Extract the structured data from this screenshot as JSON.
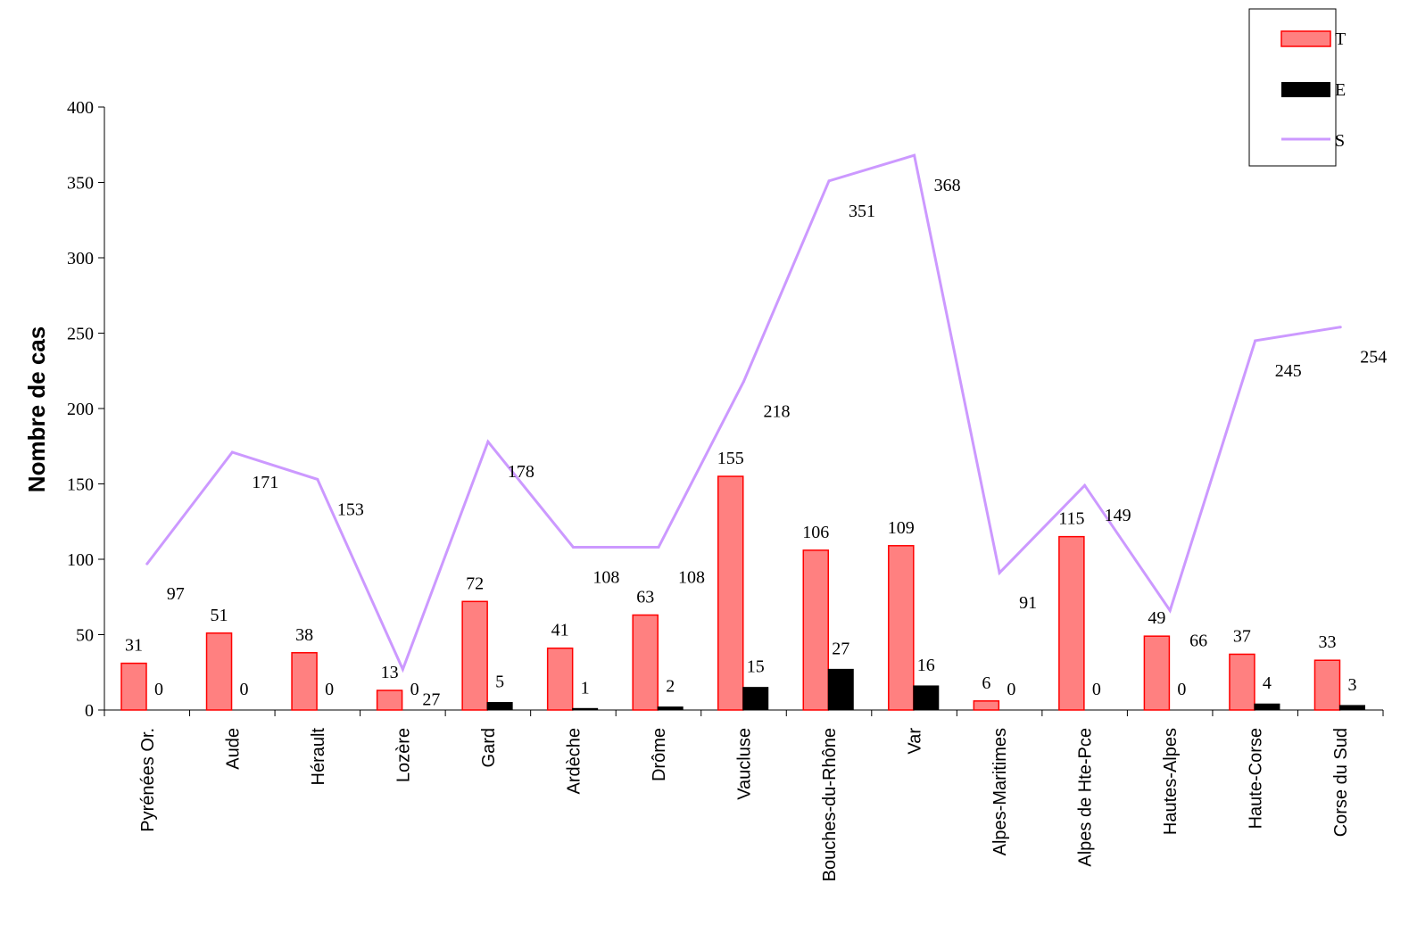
{
  "chart_data": {
    "type": "bar",
    "title": "",
    "xlabel": "",
    "ylabel": "Nombre de cas",
    "ylim": [
      0,
      400
    ],
    "yticks": [
      0,
      50,
      100,
      150,
      200,
      250,
      300,
      350,
      400
    ],
    "grid": false,
    "legend_position": "top-right",
    "categories": [
      "Pyrénées Or.",
      "Aude",
      "Hérault",
      "Lozère",
      "Gard",
      "Ardèche",
      "Drôme",
      "Vaucluse",
      "Bouches-du-Rhône",
      "Var",
      "Alpes-Maritimes",
      "Alpes de Hte-Pce",
      "Hautes-Alpes",
      "Haute-Corse",
      "Corse du Sud"
    ],
    "series": [
      {
        "name": "T",
        "type": "bar",
        "color": "#ff8080",
        "edge_color": "#ff0000",
        "values": [
          31,
          51,
          38,
          13,
          72,
          41,
          63,
          155,
          106,
          109,
          6,
          115,
          49,
          37,
          33
        ]
      },
      {
        "name": "E",
        "type": "bar",
        "color": "#000000",
        "edge_color": "#000000",
        "values": [
          0,
          0,
          0,
          0,
          5,
          1,
          2,
          15,
          27,
          16,
          0,
          0,
          0,
          4,
          3
        ]
      },
      {
        "name": "S",
        "type": "line",
        "color": "#cc99ff",
        "values": [
          97,
          171,
          153,
          27,
          178,
          108,
          108,
          218,
          351,
          368,
          91,
          149,
          66,
          245,
          254
        ]
      }
    ]
  }
}
